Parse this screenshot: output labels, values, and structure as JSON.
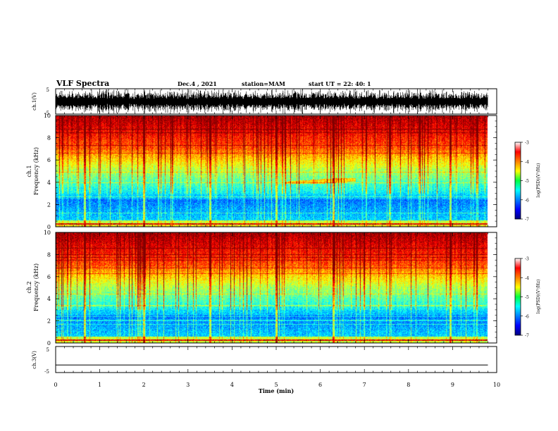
{
  "header": {
    "title": "VLF Spectra",
    "date": "Dec.4 , 2021",
    "station": "station=MAM",
    "start_time": "start UT = 22: 40: 1"
  },
  "chart_data": [
    {
      "type": "line",
      "id": "ch1_waveform",
      "ylabel": "ch.1(V)",
      "ylim": [
        -5,
        5
      ],
      "yticks": [
        "5",
        "-5"
      ],
      "xlim": [
        0,
        10
      ],
      "description_of_series": "dense black waveform spanning roughly -5 to 5 V over 0 to 9.8 min"
    },
    {
      "type": "heatmap",
      "id": "ch1_spectrogram",
      "title": "ch.1",
      "ylabel": "Frequency (kHz)",
      "ylim": [
        0,
        10
      ],
      "yticks": [
        "0",
        "2",
        "4",
        "6",
        "8",
        "10"
      ],
      "xlim": [
        0,
        10
      ],
      "data_extent_x": [
        0,
        9.8
      ],
      "colorbar": {
        "label": "log(PSD)(V²/Hz)",
        "ticks": [
          "-3",
          "-4",
          "-5",
          "-6",
          "-7"
        ],
        "range": [
          -7,
          -3
        ]
      }
    },
    {
      "type": "heatmap",
      "id": "ch2_spectrogram",
      "title": "ch.2",
      "ylabel": "Frequency (kHz)",
      "ylim": [
        0,
        10
      ],
      "yticks": [
        "0",
        "2",
        "4",
        "6",
        "8",
        "10"
      ],
      "xlim": [
        0,
        10
      ],
      "data_extent_x": [
        0,
        9.8
      ],
      "colorbar": {
        "label": "log(PSD)(V²/Hz)",
        "ticks": [
          "-3",
          "-4",
          "-5",
          "-6",
          "-7"
        ],
        "range": [
          -7,
          -3
        ]
      }
    },
    {
      "type": "line",
      "id": "ch3_waveform",
      "ylabel": "ch.3(V)",
      "ylim": [
        -5,
        5
      ],
      "yticks": [
        "5",
        "-5"
      ],
      "xlim": [
        0,
        10
      ],
      "x": [
        0,
        9.8
      ],
      "y": [
        -2.1,
        -2.1
      ]
    }
  ],
  "x_axis": {
    "label": "Time (min)",
    "ticks": [
      "0",
      "1",
      "2",
      "3",
      "4",
      "5",
      "6",
      "7",
      "8",
      "9",
      "10"
    ]
  }
}
